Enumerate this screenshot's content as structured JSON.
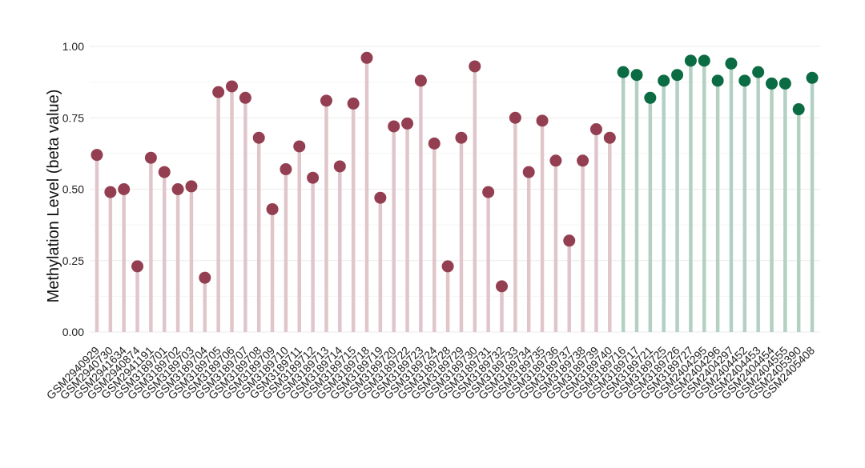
{
  "chart_data": {
    "type": "lollipop",
    "title": "",
    "xlabel": "",
    "ylabel": "Methylation Level (beta value)",
    "ylim": [
      0,
      1
    ],
    "yticks": [
      {
        "value": 0,
        "label": "0.00"
      },
      {
        "value": 0.25,
        "label": "0.25"
      },
      {
        "value": 0.5,
        "label": "0.50"
      },
      {
        "value": 0.75,
        "label": "0.75"
      },
      {
        "value": 1,
        "label": "1.00"
      }
    ],
    "grid": true,
    "legend": "none",
    "colors": {
      "group_1_point": "#943f51",
      "group_1_stem": "#e0c6cb",
      "group_2_point": "#0b6b43",
      "group_2_stem": "#b3d0c3"
    },
    "series": [
      {
        "color_key": "group_1",
        "categories": [
          "GSM2940929",
          "GSM2940730",
          "GSM2941634",
          "GSM2940874",
          "GSM2941191",
          "GSM3189701",
          "GSM3189702",
          "GSM3189703",
          "GSM3189704",
          "GSM3189705",
          "GSM3189706",
          "GSM3189707",
          "GSM3189708",
          "GSM3189709",
          "GSM3189710",
          "GSM3189711",
          "GSM3189712",
          "GSM3189713",
          "GSM3189714",
          "GSM3189715",
          "GSM3189718",
          "GSM3189719",
          "GSM3189720",
          "GSM3189722",
          "GSM3189723",
          "GSM3189724",
          "GSM3189728",
          "GSM3189729",
          "GSM3189730",
          "GSM3189731",
          "GSM3189732",
          "GSM3189733",
          "GSM3189734",
          "GSM3189735",
          "GSM3189736",
          "GSM3189737",
          "GSM3189738",
          "GSM3189739",
          "GSM3189740"
        ],
        "values": [
          0.62,
          0.49,
          0.5,
          0.23,
          0.61,
          0.56,
          0.5,
          0.51,
          0.19,
          0.84,
          0.86,
          0.82,
          0.68,
          0.43,
          0.57,
          0.65,
          0.54,
          0.81,
          0.58,
          0.8,
          0.96,
          0.47,
          0.72,
          0.73,
          0.88,
          0.66,
          0.23,
          0.68,
          0.93,
          0.49,
          0.16,
          0.75,
          0.56,
          0.74,
          0.6,
          0.32,
          0.6,
          0.71,
          0.68
        ]
      },
      {
        "color_key": "group_2",
        "categories": [
          "GSM3189716",
          "GSM3189717",
          "GSM3189721",
          "GSM3189725",
          "GSM3189726",
          "GSM3189727",
          "GSM2404295",
          "GSM2404296",
          "GSM2404297",
          "GSM2404452",
          "GSM2404453",
          "GSM2404454",
          "GSM2404555",
          "GSM2405390",
          "GSM2405408"
        ],
        "values": [
          0.91,
          0.9,
          0.82,
          0.88,
          0.9,
          0.95,
          0.95,
          0.88,
          0.94,
          0.88,
          0.91,
          0.87,
          0.87,
          0.78,
          0.89
        ]
      }
    ]
  }
}
